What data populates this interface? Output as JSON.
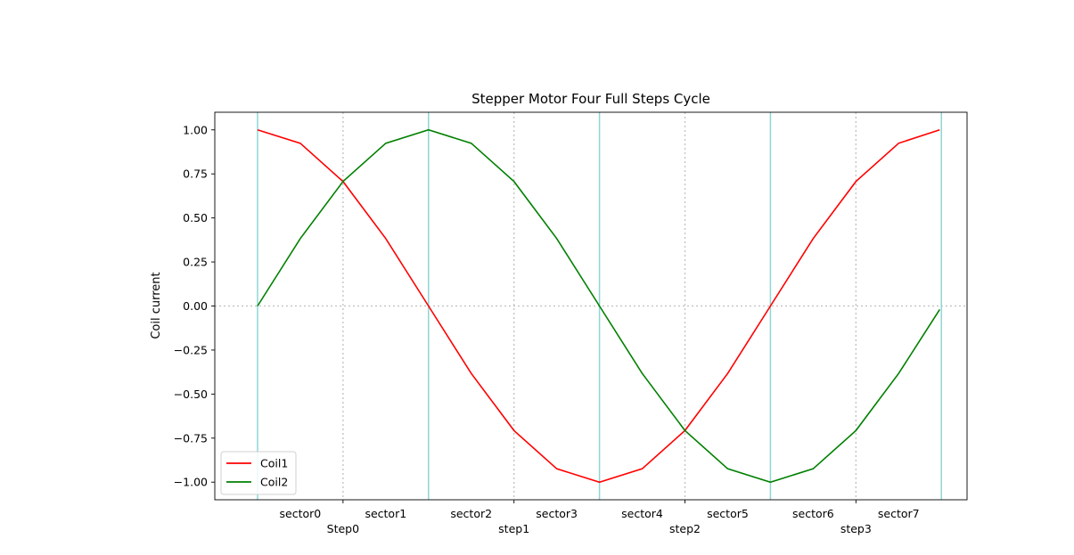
{
  "chart_data": {
    "type": "line",
    "title": "Stepper Motor Four Full Steps Cycle",
    "xlabel": "",
    "ylabel": "Coil current",
    "xlim": [
      -0.5,
      8.3
    ],
    "ylim": [
      -1.1,
      1.1
    ],
    "yticks": [
      1.0,
      0.75,
      0.5,
      0.25,
      0.0,
      -0.25,
      -0.5,
      -0.75,
      -1.0
    ],
    "ytick_labels": [
      "1.00",
      "0.75",
      "0.50",
      "0.25",
      "0.00",
      "−0.25",
      "−0.50",
      "−0.75",
      "−1.00"
    ],
    "sector_labels": [
      "sector0",
      "sector1",
      "sector2",
      "sector3",
      "sector4",
      "sector5",
      "sector6",
      "sector7"
    ],
    "sector_centers": [
      0.5,
      1.5,
      2.5,
      3.5,
      4.5,
      5.5,
      6.5,
      7.5
    ],
    "step_labels": [
      "Step0",
      "step1",
      "step2",
      "step3"
    ],
    "step_positions": [
      1,
      3,
      5,
      7
    ],
    "solid_vlines": [
      0,
      2,
      4,
      6,
      8
    ],
    "dotted_vlines": [
      1,
      3,
      5,
      7
    ],
    "hline": 0,
    "legend_position": "lower-left",
    "series": [
      {
        "name": "Coil1",
        "color": "#ff0000",
        "x": [
          0,
          0.5,
          1,
          1.5,
          2,
          2.5,
          3,
          3.5,
          4,
          4.5,
          5,
          5.5,
          6,
          6.5,
          7,
          7.5,
          7.98
        ],
        "values": [
          1.0,
          0.924,
          0.707,
          0.383,
          0.0,
          -0.383,
          -0.707,
          -0.924,
          -1.0,
          -0.924,
          -0.707,
          -0.383,
          0.0,
          0.383,
          0.707,
          0.924,
          1.0
        ]
      },
      {
        "name": "Coil2",
        "color": "#008000",
        "x": [
          0,
          0.5,
          1,
          1.5,
          2,
          2.5,
          3,
          3.5,
          4,
          4.5,
          5,
          5.5,
          6,
          6.5,
          7,
          7.5,
          7.98
        ],
        "values": [
          0.0,
          0.383,
          0.707,
          0.924,
          1.0,
          0.924,
          0.707,
          0.383,
          0.0,
          -0.383,
          -0.707,
          -0.924,
          -1.0,
          -0.924,
          -0.707,
          -0.383,
          -0.02
        ]
      }
    ]
  }
}
